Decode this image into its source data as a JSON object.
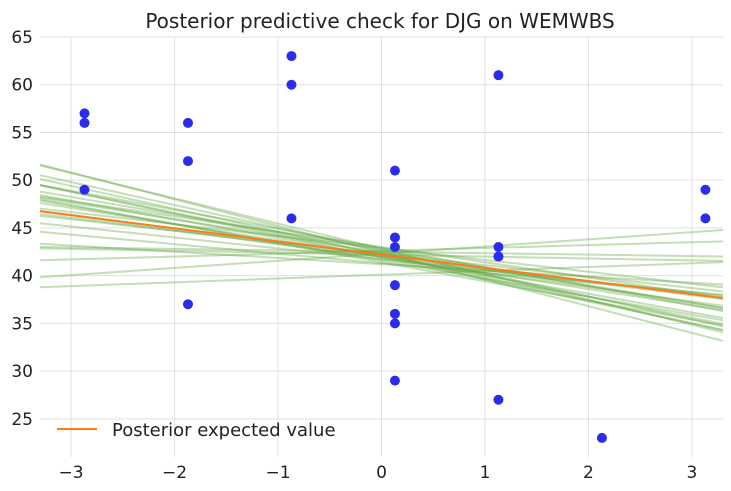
{
  "chart_data": {
    "type": "scatter",
    "title": "Posterior predictive check for DJG on WEMWBS",
    "xlabel": "",
    "ylabel": "",
    "xlim": [
      -3.3,
      3.3
    ],
    "ylim": [
      21,
      65
    ],
    "xticks": [
      -3,
      -2,
      -1,
      0,
      1,
      2,
      3
    ],
    "xtick_labels": [
      "−3",
      "−2",
      "−1",
      "0",
      "1",
      "2",
      "3"
    ],
    "yticks": [
      25,
      30,
      35,
      40,
      45,
      50,
      55,
      60,
      65
    ],
    "ytick_labels": [
      "25",
      "30",
      "35",
      "40",
      "45",
      "50",
      "55",
      "60",
      "65"
    ],
    "grid": true,
    "legend_position": "bottom-left",
    "points": [
      {
        "x": -2.87,
        "y": 57
      },
      {
        "x": -2.87,
        "y": 56
      },
      {
        "x": -2.87,
        "y": 49
      },
      {
        "x": -1.87,
        "y": 56
      },
      {
        "x": -1.87,
        "y": 52
      },
      {
        "x": -1.87,
        "y": 37
      },
      {
        "x": -0.87,
        "y": 63
      },
      {
        "x": -0.87,
        "y": 60
      },
      {
        "x": -0.87,
        "y": 46
      },
      {
        "x": 0.13,
        "y": 51
      },
      {
        "x": 0.13,
        "y": 44
      },
      {
        "x": 0.13,
        "y": 43
      },
      {
        "x": 0.13,
        "y": 39
      },
      {
        "x": 0.13,
        "y": 36
      },
      {
        "x": 0.13,
        "y": 35
      },
      {
        "x": 0.13,
        "y": 29
      },
      {
        "x": 1.13,
        "y": 61
      },
      {
        "x": 1.13,
        "y": 43
      },
      {
        "x": 1.13,
        "y": 42
      },
      {
        "x": 1.13,
        "y": 27
      },
      {
        "x": 2.13,
        "y": 23
      },
      {
        "x": 3.13,
        "y": 49
      },
      {
        "x": 3.13,
        "y": 46
      }
    ],
    "posterior_lines": [
      {
        "intercept": 42.0,
        "slope": -1.95
      },
      {
        "intercept": 42.4,
        "slope": -2.8
      },
      {
        "intercept": 42.6,
        "slope": -2.4
      },
      {
        "intercept": 42.2,
        "slope": -2.2
      },
      {
        "intercept": 41.8,
        "slope": -1.5
      },
      {
        "intercept": 42.3,
        "slope": -1.2
      },
      {
        "intercept": 42.0,
        "slope": -1.7
      },
      {
        "intercept": 42.9,
        "slope": -2.0
      },
      {
        "intercept": 41.6,
        "slope": -1.9
      },
      {
        "intercept": 42.2,
        "slope": -0.2
      },
      {
        "intercept": 42.6,
        "slope": 0.3
      },
      {
        "intercept": 42.3,
        "slope": 0.75
      },
      {
        "intercept": 42.5,
        "slope": -0.15
      },
      {
        "intercept": 41.2,
        "slope": -0.65
      },
      {
        "intercept": 40.1,
        "slope": 0.4
      },
      {
        "intercept": 42.2,
        "slope": -2.4
      },
      {
        "intercept": 42.8,
        "slope": -2.65
      },
      {
        "intercept": 42.0,
        "slope": -1.35
      },
      {
        "intercept": 43.0,
        "slope": -1.6
      },
      {
        "intercept": 41.3,
        "slope": -1.0
      },
      {
        "intercept": 42.7,
        "slope": -1.85
      },
      {
        "intercept": 41.7,
        "slope": -1.15
      },
      {
        "intercept": 41.4,
        "slope": -2.0
      },
      {
        "intercept": 42.4,
        "slope": -1.75
      },
      {
        "intercept": 41.9,
        "slope": -2.3
      },
      {
        "intercept": 42.9,
        "slope": -1.25
      }
    ],
    "expected_value_line": {
      "intercept": 42.2,
      "slope": -1.38,
      "name": "Posterior expected value"
    },
    "colors": {
      "points": "#2a2eec",
      "posterior_lines": "#65a844",
      "expected_value": "#fa7c17",
      "grid": "#e0e0e0",
      "background": "#ffffff"
    }
  }
}
